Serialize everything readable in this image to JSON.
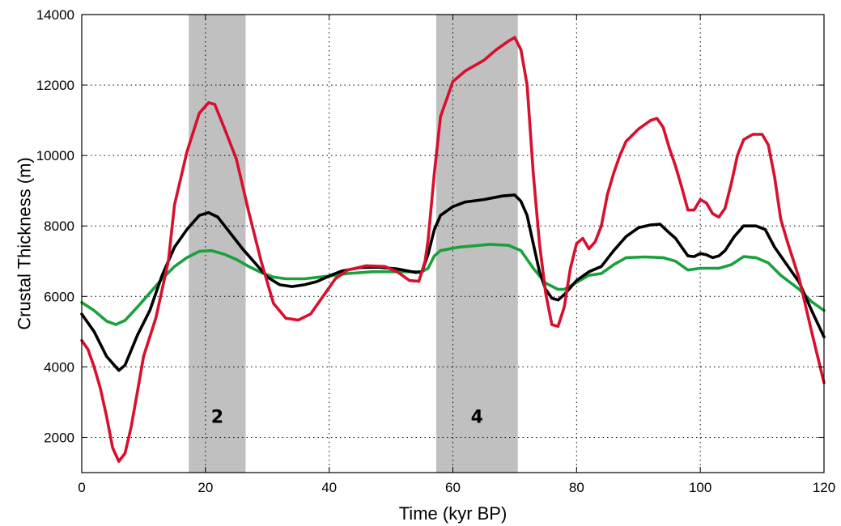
{
  "chart_data": {
    "type": "line",
    "title": "",
    "xlabel": "Time (kyr BP)",
    "ylabel": "Crustal Thickness (m)",
    "xlim": [
      0,
      120
    ],
    "ylim": [
      1000,
      14000
    ],
    "xticks": [
      "0",
      "20",
      "40",
      "60",
      "80",
      "100",
      "120"
    ],
    "yticks": [
      "2000",
      "4000",
      "6000",
      "8000",
      "10000",
      "12000",
      "14000"
    ],
    "grid": true,
    "bands": [
      {
        "label": "2",
        "x0": 17.3,
        "x1": 26.5,
        "color": "#c0c0c0"
      },
      {
        "label": "4",
        "x0": 57.3,
        "x1": 70.5,
        "color": "#c0c0c0"
      }
    ],
    "series": [
      {
        "color": "#1aa03c",
        "points": [
          [
            0,
            5830
          ],
          [
            2,
            5600
          ],
          [
            4,
            5300
          ],
          [
            5.5,
            5200
          ],
          [
            7,
            5320
          ],
          [
            9,
            5700
          ],
          [
            11,
            6100
          ],
          [
            13,
            6500
          ],
          [
            15,
            6850
          ],
          [
            17,
            7100
          ],
          [
            19,
            7280
          ],
          [
            21,
            7300
          ],
          [
            23,
            7200
          ],
          [
            25,
            7050
          ],
          [
            27,
            6850
          ],
          [
            29,
            6680
          ],
          [
            31,
            6550
          ],
          [
            33,
            6500
          ],
          [
            36,
            6500
          ],
          [
            40,
            6580
          ],
          [
            43,
            6650
          ],
          [
            47,
            6700
          ],
          [
            52,
            6700
          ],
          [
            55,
            6700
          ],
          [
            56,
            6800
          ],
          [
            57,
            7150
          ],
          [
            58,
            7300
          ],
          [
            61,
            7400
          ],
          [
            66,
            7480
          ],
          [
            69,
            7450
          ],
          [
            71,
            7300
          ],
          [
            73,
            6800
          ],
          [
            75,
            6380
          ],
          [
            77,
            6200
          ],
          [
            78,
            6200
          ],
          [
            80,
            6400
          ],
          [
            82,
            6600
          ],
          [
            84,
            6650
          ],
          [
            86,
            6900
          ],
          [
            88,
            7100
          ],
          [
            91,
            7120
          ],
          [
            94,
            7100
          ],
          [
            96,
            7000
          ],
          [
            98,
            6750
          ],
          [
            100,
            6800
          ],
          [
            103,
            6800
          ],
          [
            105,
            6900
          ],
          [
            107,
            7130
          ],
          [
            109,
            7100
          ],
          [
            111,
            6950
          ],
          [
            113,
            6600
          ],
          [
            116,
            6200
          ],
          [
            118,
            5850
          ],
          [
            120,
            5600
          ]
        ]
      },
      {
        "color": "#000000",
        "points": [
          [
            0,
            5500
          ],
          [
            2,
            5000
          ],
          [
            4,
            4300
          ],
          [
            6,
            3900
          ],
          [
            7,
            4050
          ],
          [
            9,
            4900
          ],
          [
            11,
            5600
          ],
          [
            13,
            6600
          ],
          [
            15,
            7400
          ],
          [
            17,
            7900
          ],
          [
            19,
            8300
          ],
          [
            20.5,
            8380
          ],
          [
            22,
            8250
          ],
          [
            24,
            7800
          ],
          [
            26,
            7350
          ],
          [
            28,
            6950
          ],
          [
            30,
            6550
          ],
          [
            32,
            6330
          ],
          [
            34,
            6280
          ],
          [
            36,
            6330
          ],
          [
            38,
            6420
          ],
          [
            40,
            6580
          ],
          [
            42,
            6720
          ],
          [
            45,
            6820
          ],
          [
            48,
            6830
          ],
          [
            51,
            6780
          ],
          [
            54,
            6680
          ],
          [
            55,
            6700
          ],
          [
            56,
            7200
          ],
          [
            57,
            7900
          ],
          [
            58,
            8300
          ],
          [
            60,
            8550
          ],
          [
            62,
            8680
          ],
          [
            65,
            8750
          ],
          [
            68,
            8850
          ],
          [
            70,
            8880
          ],
          [
            71,
            8700
          ],
          [
            72,
            8300
          ],
          [
            73,
            7500
          ],
          [
            74,
            6700
          ],
          [
            75,
            6200
          ],
          [
            76,
            5950
          ],
          [
            77,
            5900
          ],
          [
            78,
            6050
          ],
          [
            80,
            6450
          ],
          [
            82,
            6700
          ],
          [
            84,
            6850
          ],
          [
            86,
            7300
          ],
          [
            88,
            7700
          ],
          [
            90,
            7950
          ],
          [
            92,
            8030
          ],
          [
            93.5,
            8050
          ],
          [
            95,
            7800
          ],
          [
            96,
            7650
          ],
          [
            97,
            7400
          ],
          [
            98,
            7150
          ],
          [
            99,
            7130
          ],
          [
            100,
            7220
          ],
          [
            101,
            7180
          ],
          [
            102,
            7100
          ],
          [
            103,
            7150
          ],
          [
            104,
            7300
          ],
          [
            105.5,
            7700
          ],
          [
            107,
            8000
          ],
          [
            109,
            8000
          ],
          [
            110.5,
            7900
          ],
          [
            112,
            7400
          ],
          [
            114,
            6900
          ],
          [
            116,
            6400
          ],
          [
            118,
            5600
          ],
          [
            120,
            4850
          ]
        ]
      },
      {
        "color": "#d7102e",
        "points": [
          [
            0,
            4750
          ],
          [
            1,
            4500
          ],
          [
            2,
            4000
          ],
          [
            3,
            3400
          ],
          [
            4,
            2600
          ],
          [
            5,
            1700
          ],
          [
            6,
            1320
          ],
          [
            7,
            1550
          ],
          [
            8,
            2300
          ],
          [
            9,
            3300
          ],
          [
            10,
            4300
          ],
          [
            12,
            5400
          ],
          [
            14,
            7000
          ],
          [
            15,
            8600
          ],
          [
            17,
            10100
          ],
          [
            19,
            11200
          ],
          [
            20.5,
            11500
          ],
          [
            21.5,
            11450
          ],
          [
            23,
            10800
          ],
          [
            25,
            9900
          ],
          [
            27,
            8400
          ],
          [
            29,
            7000
          ],
          [
            31,
            5800
          ],
          [
            33,
            5380
          ],
          [
            35,
            5330
          ],
          [
            37,
            5500
          ],
          [
            39,
            6000
          ],
          [
            41,
            6500
          ],
          [
            43,
            6750
          ],
          [
            46,
            6870
          ],
          [
            49,
            6850
          ],
          [
            51,
            6700
          ],
          [
            53,
            6450
          ],
          [
            54.5,
            6430
          ],
          [
            55.5,
            7000
          ],
          [
            56,
            7600
          ],
          [
            57,
            9500
          ],
          [
            58,
            11100
          ],
          [
            60,
            12100
          ],
          [
            62,
            12400
          ],
          [
            65,
            12700
          ],
          [
            67,
            13000
          ],
          [
            69,
            13250
          ],
          [
            70,
            13350
          ],
          [
            71,
            13000
          ],
          [
            72,
            12000
          ],
          [
            73,
            9500
          ],
          [
            74,
            7500
          ],
          [
            75,
            6100
          ],
          [
            76,
            5200
          ],
          [
            77,
            5150
          ],
          [
            78,
            5700
          ],
          [
            79,
            6800
          ],
          [
            80,
            7500
          ],
          [
            81,
            7650
          ],
          [
            82,
            7350
          ],
          [
            83,
            7550
          ],
          [
            84,
            8000
          ],
          [
            85,
            8900
          ],
          [
            86,
            9500
          ],
          [
            87,
            10000
          ],
          [
            88,
            10400
          ],
          [
            90,
            10750
          ],
          [
            92,
            11000
          ],
          [
            93,
            11050
          ],
          [
            94,
            10800
          ],
          [
            95,
            10200
          ],
          [
            96,
            9700
          ],
          [
            97,
            9100
          ],
          [
            98,
            8450
          ],
          [
            99,
            8450
          ],
          [
            100,
            8750
          ],
          [
            101,
            8650
          ],
          [
            102,
            8350
          ],
          [
            103,
            8250
          ],
          [
            104,
            8500
          ],
          [
            105,
            9200
          ],
          [
            106,
            10000
          ],
          [
            107,
            10450
          ],
          [
            108.5,
            10600
          ],
          [
            110,
            10600
          ],
          [
            111,
            10300
          ],
          [
            112,
            9400
          ],
          [
            113,
            8200
          ],
          [
            114,
            7600
          ],
          [
            116,
            6500
          ],
          [
            118,
            5000
          ],
          [
            120,
            3550
          ]
        ]
      }
    ]
  }
}
